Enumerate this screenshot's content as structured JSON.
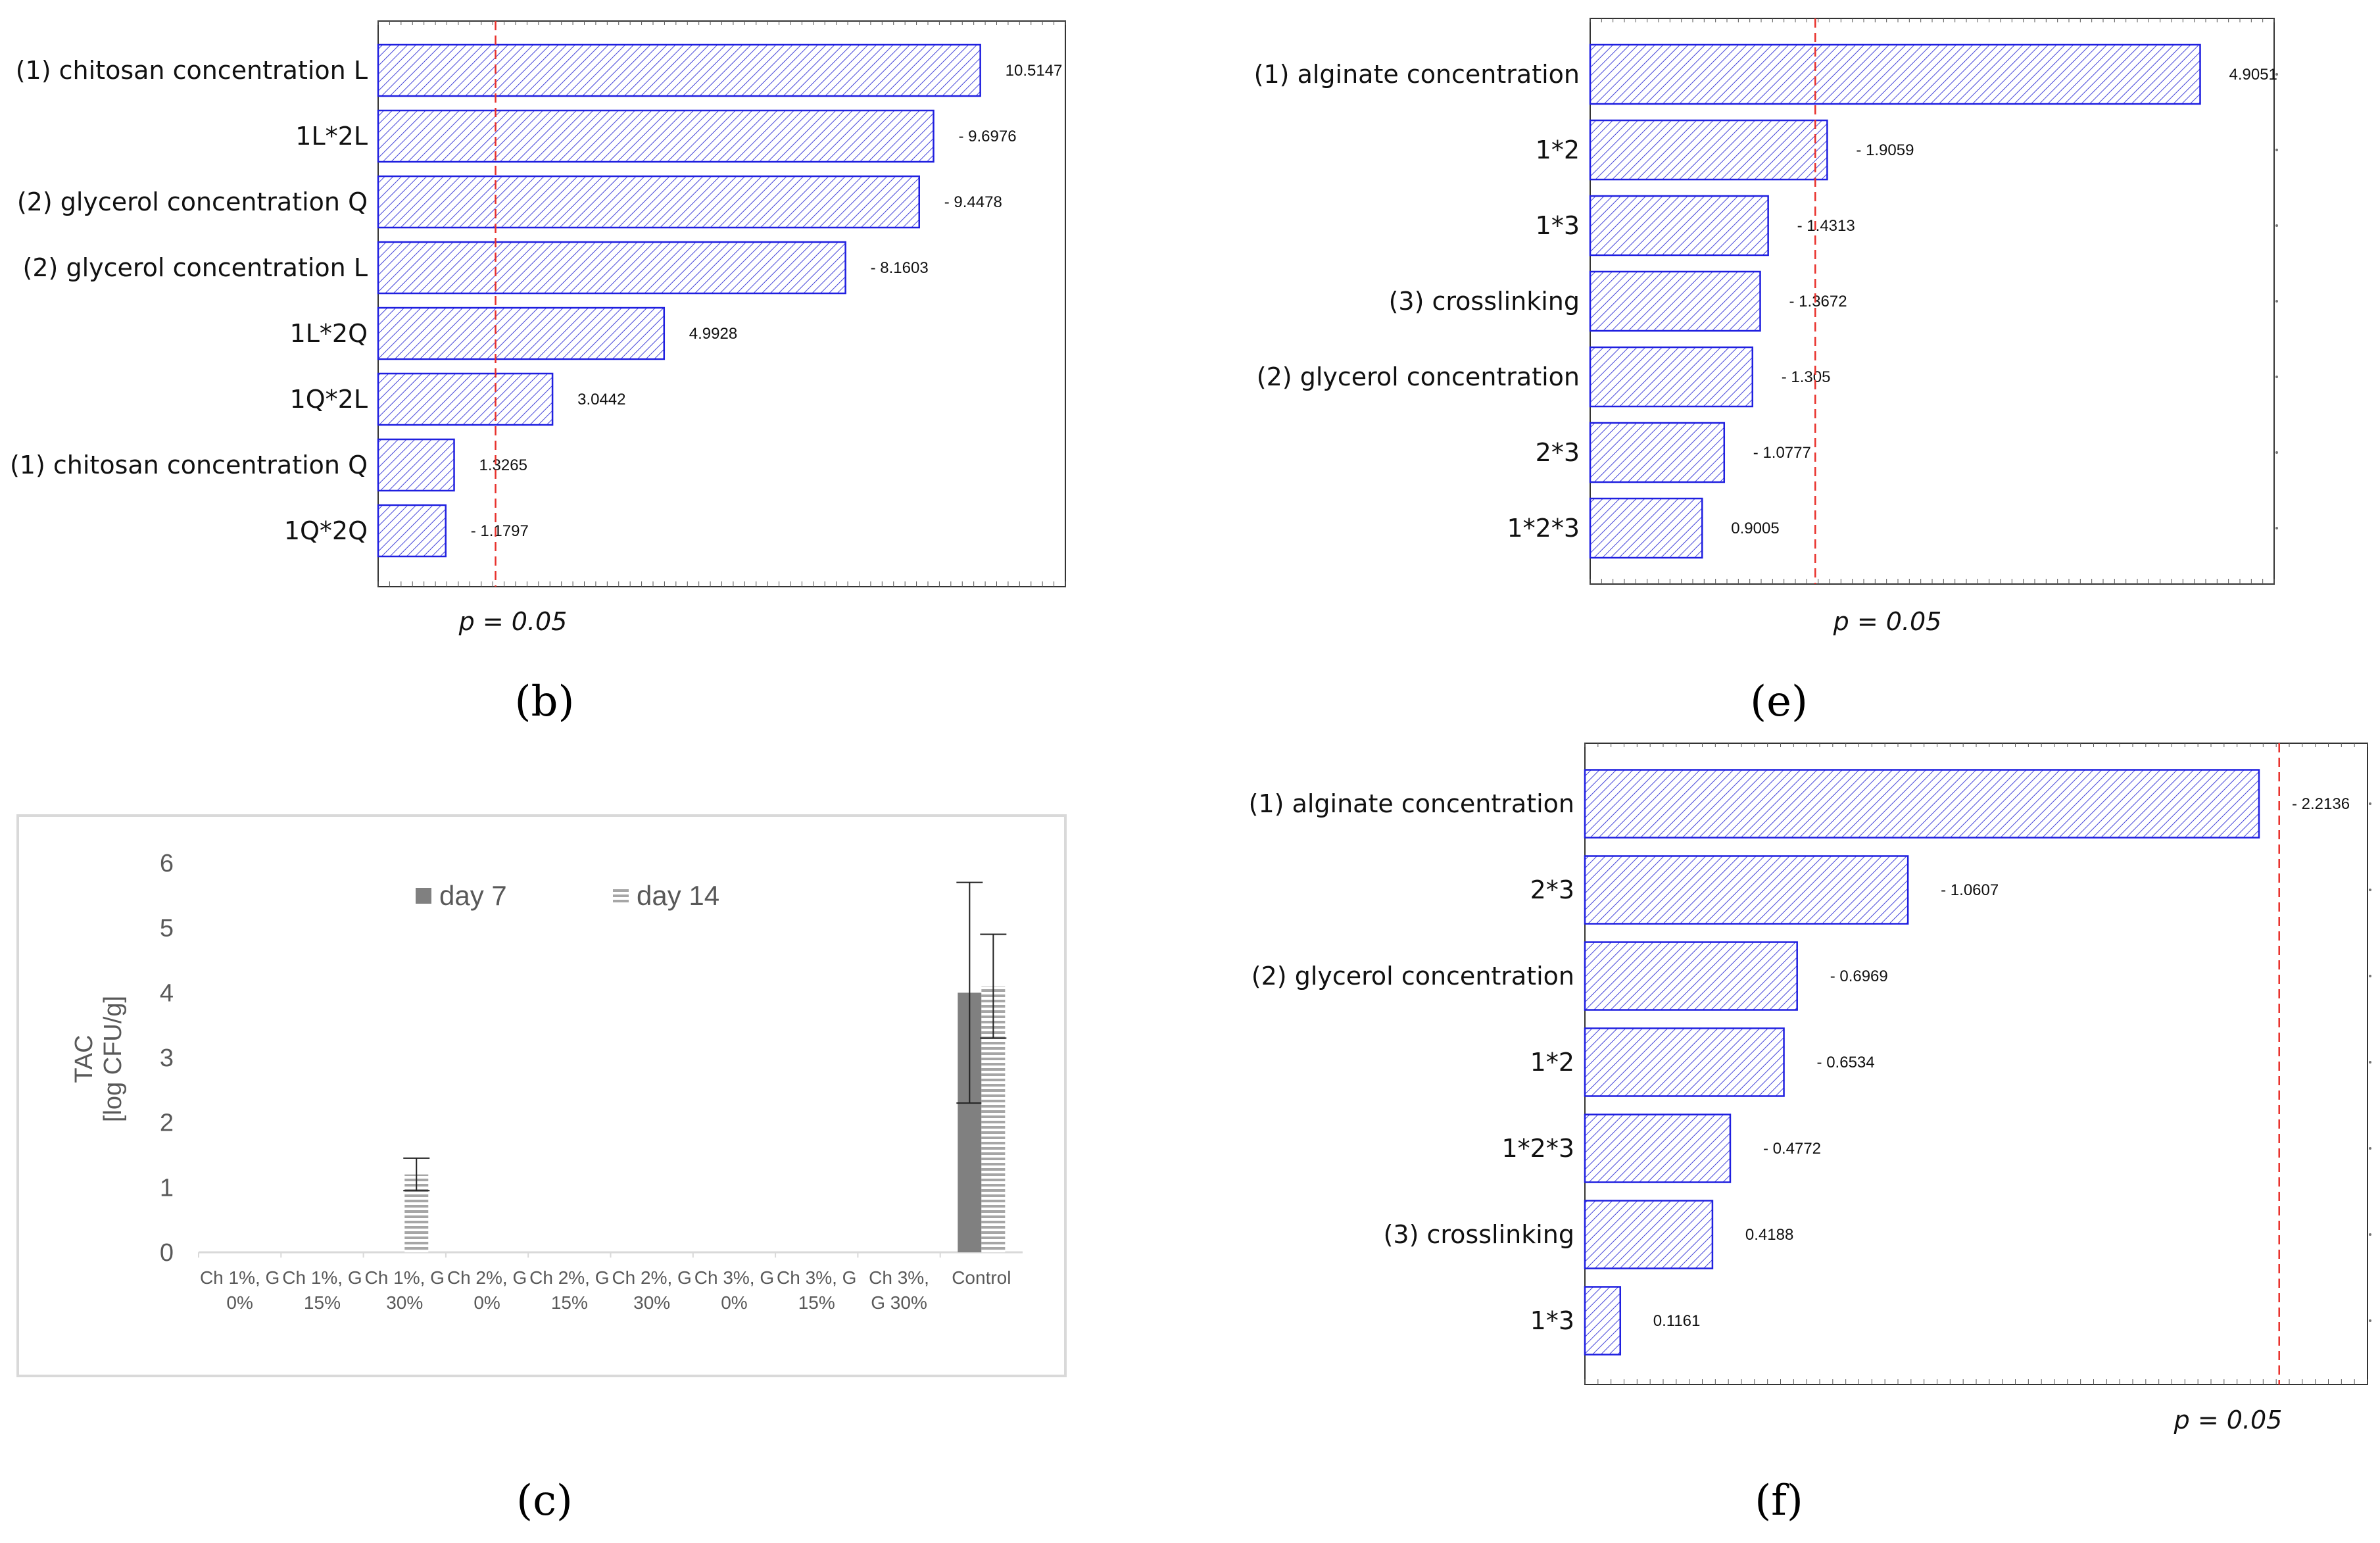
{
  "chart_data": [
    {
      "type": "bar",
      "panel_label": "(b)",
      "orientation": "horizontal",
      "categories": [
        "(1) chitosan concentration L",
        "1L*2L",
        "(2) glycerol concentration Q",
        "(2)  glycerol concentration L",
        "1L*2Q",
        "1Q*2L",
        "(1) chitosan concentration Q",
        "1Q*2Q"
      ],
      "value_labels": [
        "10.5147",
        "- 9.6976",
        "- 9.4478",
        "- 8.1603",
        "4.9928",
        "3.0442",
        "1.3265",
        "- 1.1797"
      ],
      "values": [
        10.5147,
        9.6976,
        9.4478,
        8.1603,
        4.9928,
        3.0442,
        1.3265,
        1.1797
      ],
      "threshold": 2.05,
      "threshold_label": "p = 0.05",
      "xlim": [
        0,
        12
      ]
    },
    {
      "type": "bar",
      "panel_label": "(e)",
      "orientation": "horizontal",
      "categories": [
        "(1) alginate concentration",
        "1*2",
        "1*3",
        "(3) crosslinking",
        "(2) glycerol concentration",
        "2*3",
        "1*2*3"
      ],
      "value_labels": [
        "4.9051",
        "- 1.9059",
        "- 1.4313",
        "- 1.3672",
        "- 1.305",
        "- 1.0777",
        "0.9005"
      ],
      "values": [
        4.9051,
        1.9059,
        1.4313,
        1.3672,
        1.305,
        1.0777,
        0.9005
      ],
      "threshold": 1.81,
      "threshold_label": "p = 0.05",
      "xlim": [
        0,
        5.5
      ]
    },
    {
      "type": "bar",
      "panel_label": "(c)",
      "orientation": "vertical",
      "categories": [
        "Ch 1%, G 0%",
        "Ch 1%, G 15%",
        "Ch 1%, G 30%",
        "Ch 2%, G 0%",
        "Ch 2%, G 15%",
        "Ch 2%, G 30%",
        "Ch 3%, G 0%",
        "Ch 3%, G 15%",
        "Ch  3%, G 30%",
        "Control"
      ],
      "category_lines": [
        [
          "Ch 1%, G",
          "0%"
        ],
        [
          "Ch 1%, G",
          "15%"
        ],
        [
          "Ch 1%, G",
          "30%"
        ],
        [
          "Ch 2%, G",
          "0%"
        ],
        [
          "Ch 2%, G",
          "15%"
        ],
        [
          "Ch 2%, G",
          "30%"
        ],
        [
          "Ch 3%, G",
          "0%"
        ],
        [
          "Ch 3%, G",
          "15%"
        ],
        [
          "Ch  3%,",
          "G 30%"
        ],
        [
          "Control",
          ""
        ]
      ],
      "series": [
        {
          "name": "day 7",
          "values": [
            0,
            0,
            0,
            0,
            0,
            0,
            0,
            0,
            0,
            4.0
          ],
          "errors": [
            0,
            0,
            0,
            0,
            0,
            0,
            0,
            0,
            0,
            1.7
          ],
          "color": "#808080"
        },
        {
          "name": "day 14",
          "values": [
            0,
            0,
            1.2,
            0,
            0,
            0,
            0,
            0,
            0,
            4.1
          ],
          "errors": [
            0,
            0,
            0.25,
            0,
            0,
            0,
            0,
            0,
            0,
            0.8
          ],
          "color": "#a6a6a6"
        }
      ],
      "ylabel": [
        "TAC",
        "[log CFU/g]"
      ],
      "ylim": [
        0,
        6
      ],
      "yticks": [
        "0",
        "1",
        "2",
        "3",
        "4",
        "5",
        "6"
      ]
    },
    {
      "type": "bar",
      "panel_label": "(f)",
      "orientation": "horizontal",
      "categories": [
        "(1) alginate concentration",
        "2*3",
        "(2) glycerol concentration",
        "1*2",
        "1*2*3",
        "(3) crosslinking",
        "1*3"
      ],
      "value_labels": [
        "- 2.2136",
        "- 1.0607",
        "- 0.6969",
        "- 0.6534",
        "- 0.4772",
        "0.4188",
        "0.1161"
      ],
      "values": [
        2.2136,
        1.0607,
        0.6969,
        0.6534,
        0.4772,
        0.4188,
        0.1161
      ],
      "threshold": 2.28,
      "threshold_label": "p = 0.05",
      "xlim": [
        0,
        2.57
      ]
    }
  ],
  "colors": {
    "bar_stroke": "#1f1fe0",
    "hatch": "#4646d9",
    "threshold": "#e8302b",
    "day7": "#808080",
    "day14": "#a6a6a6"
  }
}
